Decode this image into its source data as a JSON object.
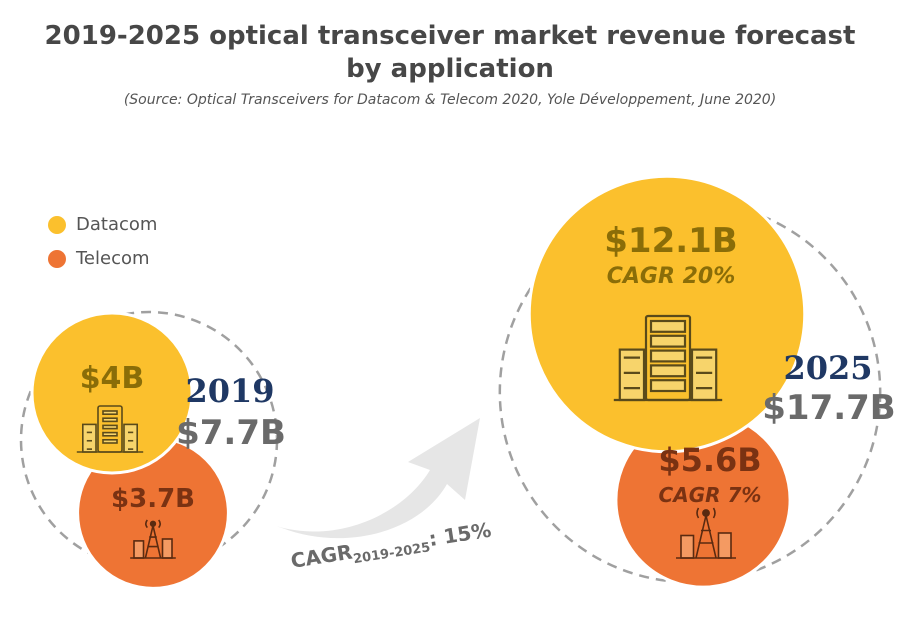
{
  "title_line1": "2019-2025 optical transceiver market revenue forecast",
  "title_line2": "by application",
  "source": "(Source: Optical Transceivers for Datacom & Telecom 2020, Yole Développement, June 2020)",
  "legend": [
    {
      "label": "Datacom",
      "color": "#FBC02D"
    },
    {
      "label": "Telecom",
      "color": "#EE7434"
    }
  ],
  "colors": {
    "datacom": "#FBC02D",
    "telecom": "#EE7434",
    "year": "#1F3864",
    "total": "#6A6A6A",
    "datacom_text": "#8A6D08",
    "telecom_text": "#7A3212",
    "dashed": "#A0A0A0",
    "arrow": "#E6E6E6"
  },
  "chart_data": {
    "type": "bubble",
    "title": "2019-2025 optical transceiver market revenue forecast by application",
    "unit": "$B",
    "categories": [
      "2019",
      "2025"
    ],
    "series": [
      {
        "name": "Datacom",
        "values": [
          4,
          12.1
        ],
        "labels": [
          "$4B",
          "$12.1B"
        ],
        "cagr": [
          "",
          "CAGR 20%"
        ]
      },
      {
        "name": "Telecom",
        "values": [
          3.7,
          5.6
        ],
        "labels": [
          "$3.7B",
          "$5.6B"
        ],
        "cagr": [
          "",
          "CAGR 7%"
        ]
      }
    ],
    "totals": [
      {
        "year": "2019",
        "value": 7.7,
        "label": "$7.7B"
      },
      {
        "year": "2025",
        "value": 17.7,
        "label": "$17.7B"
      }
    ],
    "overall_cagr": {
      "prefix": "CAGR",
      "period": "2019-2025",
      "value": ": 15%"
    }
  },
  "icons": {
    "datacom": "server-rack-icon",
    "telecom": "antenna-tower-icon"
  }
}
